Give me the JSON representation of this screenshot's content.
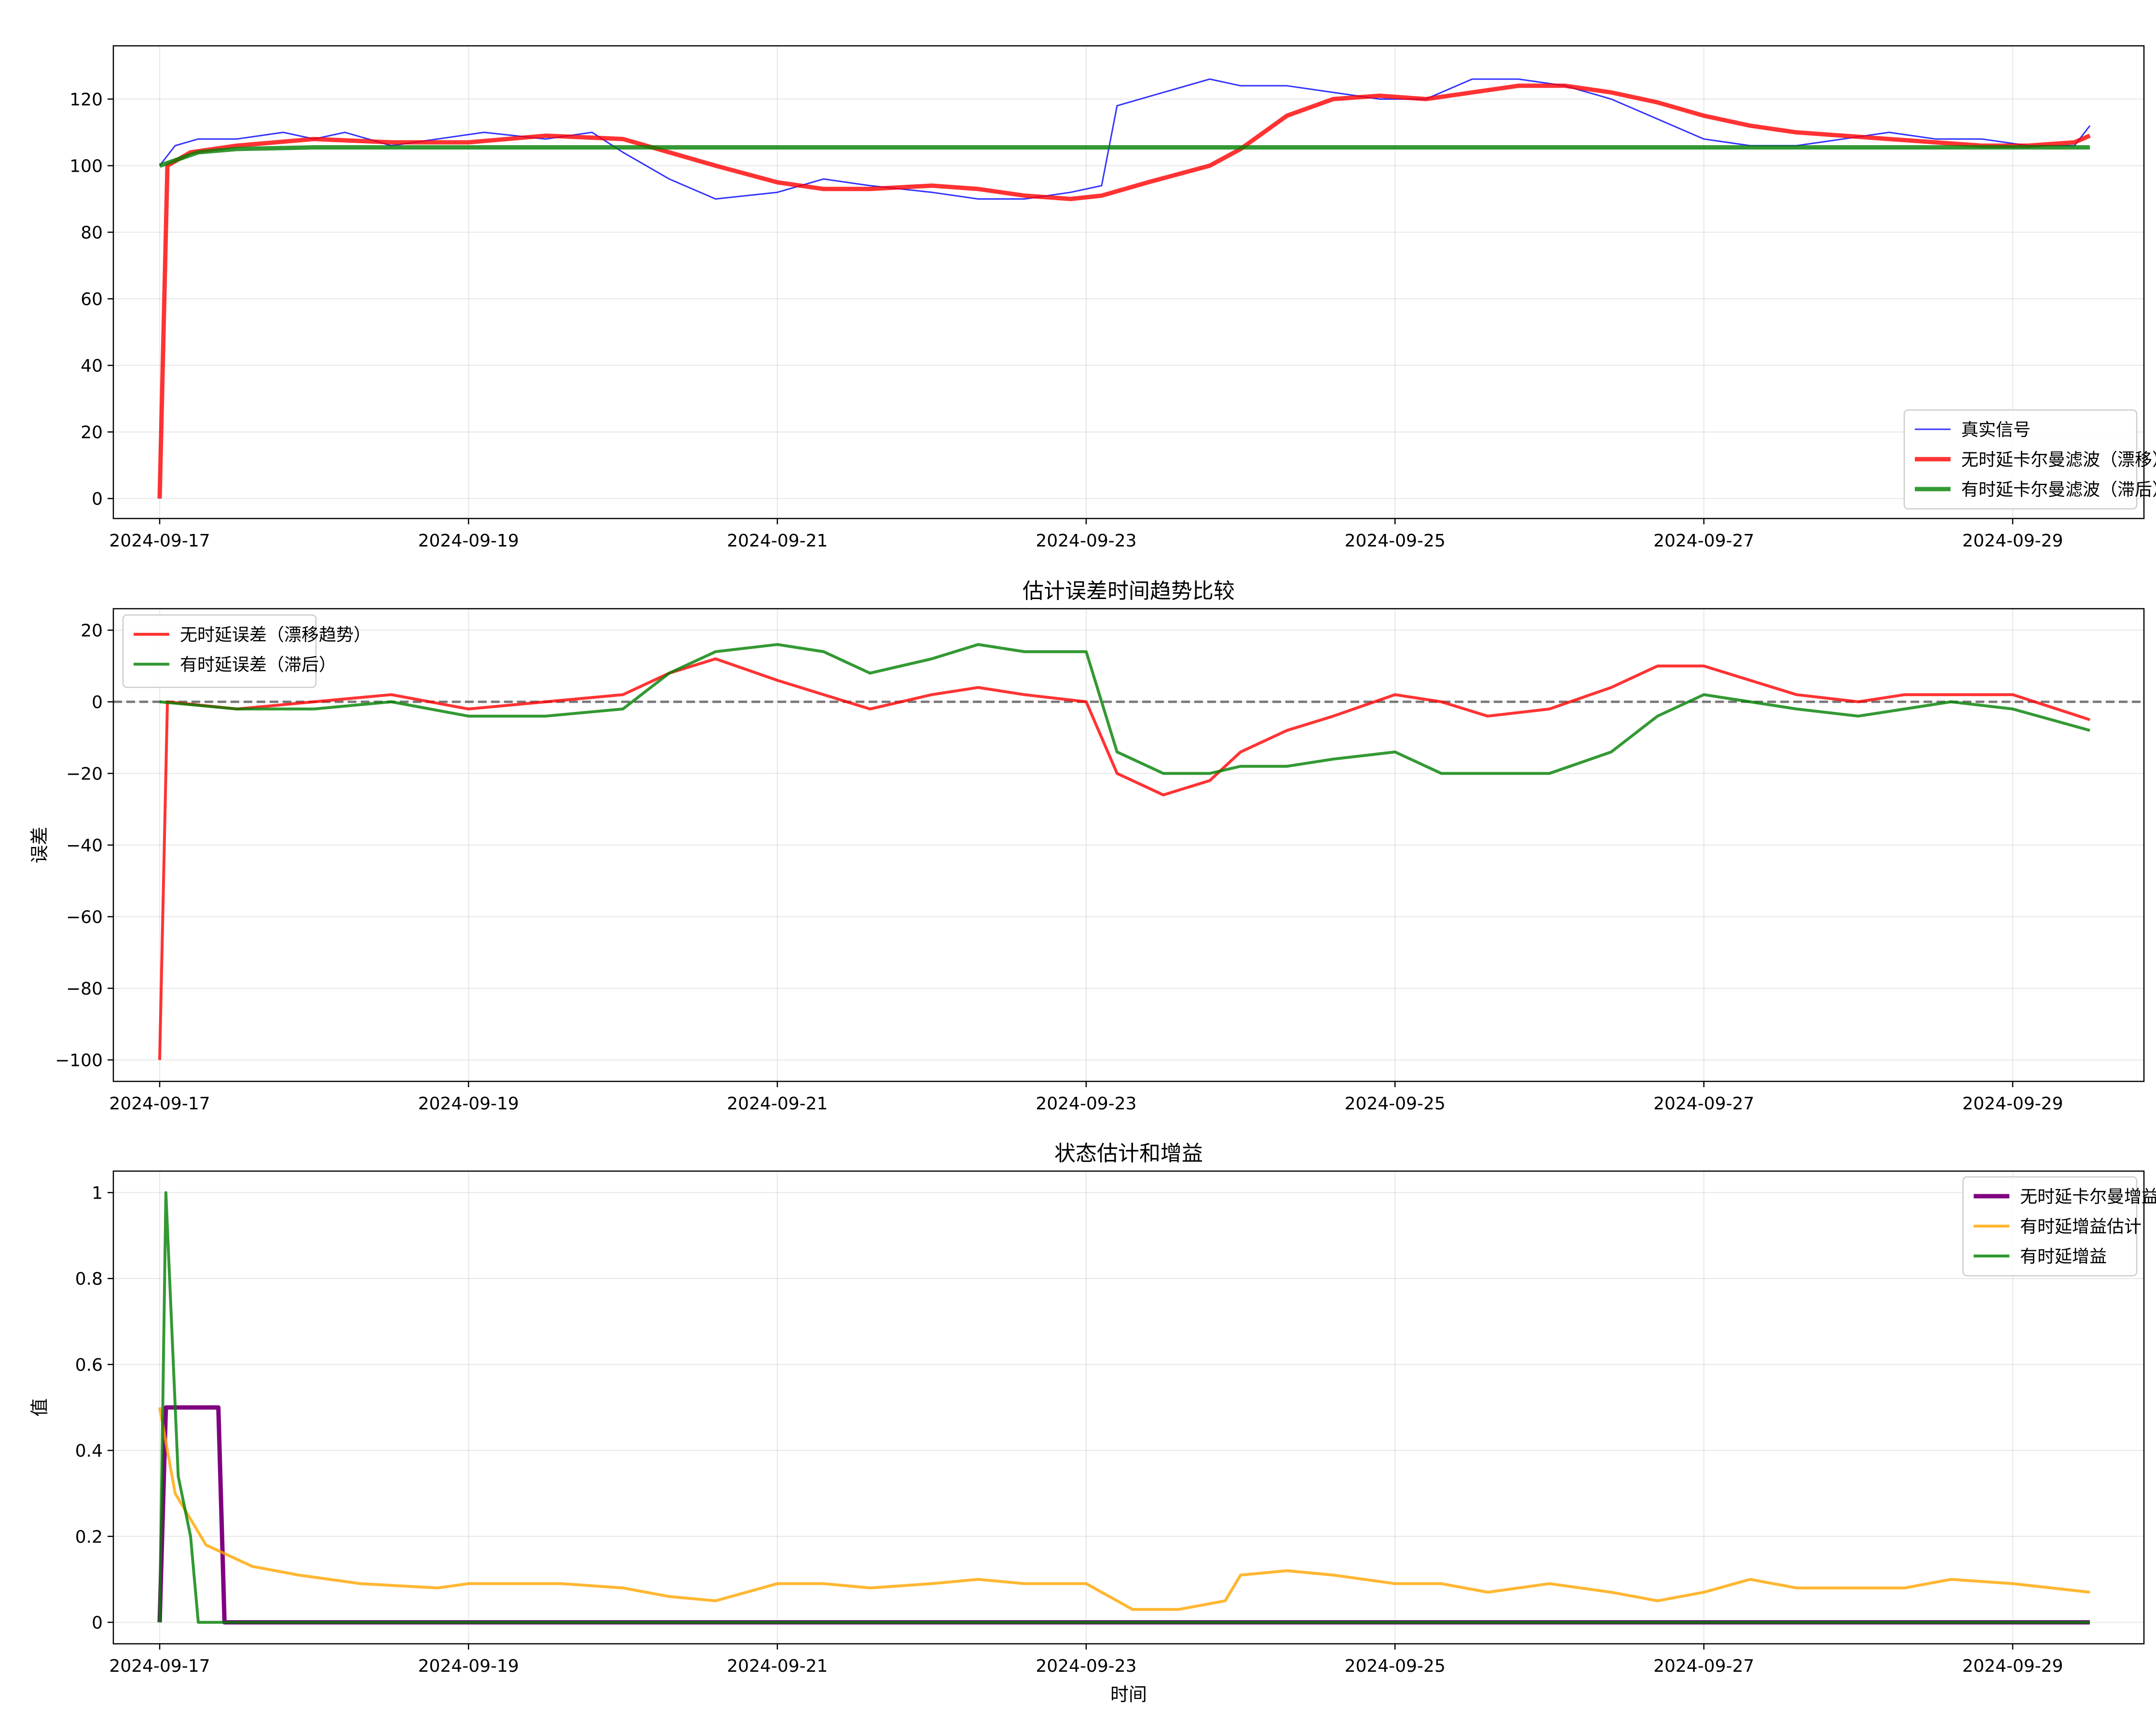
{
  "chart_data": [
    {
      "type": "line",
      "title": "",
      "xlabel": "",
      "ylabel": "",
      "x_ticks": [
        "2024-09-17",
        "2024-09-19",
        "2024-09-21",
        "2024-09-23",
        "2024-09-25",
        "2024-09-27",
        "2024-09-29"
      ],
      "ylim": [
        -6,
        136
      ],
      "y_ticks": [
        0,
        20,
        40,
        60,
        80,
        100,
        120
      ],
      "grid": true,
      "legend_position": "bottom-right",
      "series": [
        {
          "name": "",
          "color": "#0000ff",
          "width": 1,
          "alpha": 0.8,
          "points": [
            [
              0,
              100
            ],
            [
              0.1,
              106
            ],
            [
              0.25,
              108
            ],
            [
              0.5,
              108
            ],
            [
              0.8,
              110
            ],
            [
              1.0,
              108
            ],
            [
              1.2,
              110
            ],
            [
              1.5,
              106
            ],
            [
              1.8,
              108
            ],
            [
              2.1,
              110
            ],
            [
              2.5,
              108
            ],
            [
              2.8,
              110
            ],
            [
              3.0,
              104
            ],
            [
              3.3,
              96
            ],
            [
              3.6,
              90
            ],
            [
              4.0,
              92
            ],
            [
              4.3,
              96
            ],
            [
              4.6,
              94
            ],
            [
              5.0,
              92
            ],
            [
              5.3,
              90
            ],
            [
              5.6,
              90
            ],
            [
              5.9,
              92
            ],
            [
              6.1,
              94
            ],
            [
              6.2,
              118
            ],
            [
              6.5,
              122
            ],
            [
              6.8,
              126
            ],
            [
              7.0,
              124
            ],
            [
              7.3,
              124
            ],
            [
              7.6,
              122
            ],
            [
              7.9,
              120
            ],
            [
              8.2,
              120
            ],
            [
              8.5,
              126
            ],
            [
              8.8,
              126
            ],
            [
              9.1,
              124
            ],
            [
              9.4,
              120
            ],
            [
              9.7,
              114
            ],
            [
              10.0,
              108
            ],
            [
              10.3,
              106
            ],
            [
              10.6,
              106
            ],
            [
              10.9,
              108
            ],
            [
              11.2,
              110
            ],
            [
              11.5,
              108
            ],
            [
              11.8,
              108
            ],
            [
              12.1,
              106
            ],
            [
              12.4,
              106
            ],
            [
              12.5,
              112
            ]
          ]
        },
        {
          "name": "",
          "color": "#ff0000",
          "width": 3,
          "alpha": 0.8,
          "points": [
            [
              0,
              0
            ],
            [
              0.05,
              100
            ],
            [
              0.2,
              104
            ],
            [
              0.5,
              106
            ],
            [
              1.0,
              108
            ],
            [
              1.5,
              107
            ],
            [
              2.0,
              107
            ],
            [
              2.5,
              109
            ],
            [
              3.0,
              108
            ],
            [
              3.3,
              104
            ],
            [
              3.6,
              100
            ],
            [
              4.0,
              95
            ],
            [
              4.3,
              93
            ],
            [
              4.6,
              93
            ],
            [
              5.0,
              94
            ],
            [
              5.3,
              93
            ],
            [
              5.6,
              91
            ],
            [
              5.9,
              90
            ],
            [
              6.1,
              91
            ],
            [
              6.4,
              95
            ],
            [
              6.8,
              100
            ],
            [
              7.0,
              105
            ],
            [
              7.3,
              115
            ],
            [
              7.6,
              120
            ],
            [
              7.9,
              121
            ],
            [
              8.2,
              120
            ],
            [
              8.5,
              122
            ],
            [
              8.8,
              124
            ],
            [
              9.1,
              124
            ],
            [
              9.4,
              122
            ],
            [
              9.7,
              119
            ],
            [
              10.0,
              115
            ],
            [
              10.3,
              112
            ],
            [
              10.6,
              110
            ],
            [
              10.9,
              109
            ],
            [
              11.2,
              108
            ],
            [
              11.5,
              107
            ],
            [
              11.8,
              106
            ],
            [
              12.1,
              106
            ],
            [
              12.4,
              107
            ],
            [
              12.5,
              109
            ]
          ]
        },
        {
          "name": "",
          "color": "#008000",
          "width": 3,
          "alpha": 0.8,
          "points": [
            [
              0,
              100
            ],
            [
              0.25,
              104
            ],
            [
              0.5,
              105
            ],
            [
              1.0,
              105.5
            ],
            [
              12.5,
              105.5
            ]
          ]
        }
      ],
      "legend": [
        "真实信号",
        "无时延卡尔曼滤波（漂移）",
        "有时延卡尔曼滤波（滞后）"
      ]
    },
    {
      "type": "line",
      "title": "估计误差时间趋势比较",
      "xlabel": "",
      "ylabel": "误差",
      "x_ticks": [
        "2024-09-17",
        "2024-09-19",
        "2024-09-21",
        "2024-09-23",
        "2024-09-25",
        "2024-09-27",
        "2024-09-29"
      ],
      "ylim": [
        -106,
        26
      ],
      "y_ticks": [
        -100,
        -80,
        -60,
        -40,
        -20,
        0,
        20
      ],
      "grid": true,
      "zero_line": true,
      "legend_position": "top-left",
      "series": [
        {
          "name": "",
          "color": "#ff0000",
          "width": 2,
          "alpha": 0.8,
          "points": [
            [
              0,
              -100
            ],
            [
              0.05,
              0
            ],
            [
              0.5,
              -2
            ],
            [
              1.0,
              0
            ],
            [
              1.5,
              2
            ],
            [
              2.0,
              -2
            ],
            [
              2.5,
              0
            ],
            [
              3.0,
              2
            ],
            [
              3.3,
              8
            ],
            [
              3.6,
              12
            ],
            [
              4.0,
              6
            ],
            [
              4.3,
              2
            ],
            [
              4.6,
              -2
            ],
            [
              5.0,
              2
            ],
            [
              5.3,
              4
            ],
            [
              5.6,
              2
            ],
            [
              6.0,
              0
            ],
            [
              6.2,
              -20
            ],
            [
              6.5,
              -26
            ],
            [
              6.8,
              -22
            ],
            [
              7.0,
              -14
            ],
            [
              7.3,
              -8
            ],
            [
              7.6,
              -4
            ],
            [
              8.0,
              2
            ],
            [
              8.3,
              0
            ],
            [
              8.6,
              -4
            ],
            [
              9.0,
              -2
            ],
            [
              9.4,
              4
            ],
            [
              9.7,
              10
            ],
            [
              10.0,
              10
            ],
            [
              10.3,
              6
            ],
            [
              10.6,
              2
            ],
            [
              11.0,
              0
            ],
            [
              11.3,
              2
            ],
            [
              11.6,
              2
            ],
            [
              12.0,
              2
            ],
            [
              12.5,
              -5
            ]
          ]
        },
        {
          "name": "",
          "color": "#008000",
          "width": 2,
          "alpha": 0.8,
          "points": [
            [
              0,
              0
            ],
            [
              0.5,
              -2
            ],
            [
              1.0,
              -2
            ],
            [
              1.5,
              0
            ],
            [
              2.0,
              -4
            ],
            [
              2.5,
              -4
            ],
            [
              3.0,
              -2
            ],
            [
              3.3,
              8
            ],
            [
              3.6,
              14
            ],
            [
              4.0,
              16
            ],
            [
              4.3,
              14
            ],
            [
              4.6,
              8
            ],
            [
              5.0,
              12
            ],
            [
              5.3,
              16
            ],
            [
              5.6,
              14
            ],
            [
              6.0,
              14
            ],
            [
              6.2,
              -14
            ],
            [
              6.5,
              -20
            ],
            [
              6.8,
              -20
            ],
            [
              7.0,
              -18
            ],
            [
              7.3,
              -18
            ],
            [
              7.6,
              -16
            ],
            [
              8.0,
              -14
            ],
            [
              8.3,
              -20
            ],
            [
              8.6,
              -20
            ],
            [
              9.0,
              -20
            ],
            [
              9.4,
              -14
            ],
            [
              9.7,
              -4
            ],
            [
              10.0,
              2
            ],
            [
              10.3,
              0
            ],
            [
              10.6,
              -2
            ],
            [
              11.0,
              -4
            ],
            [
              11.3,
              -2
            ],
            [
              11.6,
              0
            ],
            [
              12.0,
              -2
            ],
            [
              12.5,
              -8
            ]
          ]
        }
      ],
      "legend": [
        "无时延误差（漂移趋势）",
        "有时延误差（滞后）"
      ]
    },
    {
      "type": "line",
      "title": "状态估计和增益",
      "xlabel": "时间",
      "ylabel": "值",
      "x_ticks": [
        "2024-09-17",
        "2024-09-19",
        "2024-09-21",
        "2024-09-23",
        "2024-09-25",
        "2024-09-27",
        "2024-09-29"
      ],
      "ylim": [
        -0.05,
        1.05
      ],
      "y_ticks": [
        0.0,
        0.2,
        0.4,
        0.6,
        0.8,
        1.0
      ],
      "grid": true,
      "legend_position": "top-right",
      "series": [
        {
          "name": "",
          "color": "#800080",
          "width": 3,
          "alpha": 1,
          "points": [
            [
              0,
              0
            ],
            [
              0.04,
              0.5
            ],
            [
              0.38,
              0.5
            ],
            [
              0.42,
              0
            ],
            [
              12.5,
              0
            ]
          ]
        },
        {
          "name": "",
          "color": "#ffa500",
          "width": 2,
          "alpha": 0.8,
          "points": [
            [
              0,
              0.5
            ],
            [
              0.1,
              0.3
            ],
            [
              0.3,
              0.18
            ],
            [
              0.6,
              0.13
            ],
            [
              0.9,
              0.11
            ],
            [
              1.3,
              0.09
            ],
            [
              1.8,
              0.08
            ],
            [
              2.0,
              0.09
            ],
            [
              2.3,
              0.09
            ],
            [
              2.6,
              0.09
            ],
            [
              3.0,
              0.08
            ],
            [
              3.3,
              0.06
            ],
            [
              3.6,
              0.05
            ],
            [
              4.0,
              0.09
            ],
            [
              4.3,
              0.09
            ],
            [
              4.6,
              0.08
            ],
            [
              5.0,
              0.09
            ],
            [
              5.3,
              0.1
            ],
            [
              5.6,
              0.09
            ],
            [
              6.0,
              0.09
            ],
            [
              6.3,
              0.03
            ],
            [
              6.6,
              0.03
            ],
            [
              6.9,
              0.05
            ],
            [
              7.0,
              0.11
            ],
            [
              7.3,
              0.12
            ],
            [
              7.6,
              0.11
            ],
            [
              8.0,
              0.09
            ],
            [
              8.3,
              0.09
            ],
            [
              8.6,
              0.07
            ],
            [
              9.0,
              0.09
            ],
            [
              9.4,
              0.07
            ],
            [
              9.7,
              0.05
            ],
            [
              10.0,
              0.07
            ],
            [
              10.3,
              0.1
            ],
            [
              10.6,
              0.08
            ],
            [
              11.0,
              0.08
            ],
            [
              11.3,
              0.08
            ],
            [
              11.6,
              0.1
            ],
            [
              12.0,
              0.09
            ],
            [
              12.5,
              0.07
            ]
          ]
        },
        {
          "name": "",
          "color": "#008000",
          "width": 2,
          "alpha": 0.8,
          "points": [
            [
              0,
              0
            ],
            [
              0.04,
              1.0
            ],
            [
              0.12,
              0.34
            ],
            [
              0.2,
              0.2
            ],
            [
              0.25,
              0
            ],
            [
              12.5,
              0
            ]
          ]
        }
      ],
      "legend": [
        "无时延卡尔曼增益",
        "有时延增益估计",
        "有时延增益"
      ]
    }
  ]
}
